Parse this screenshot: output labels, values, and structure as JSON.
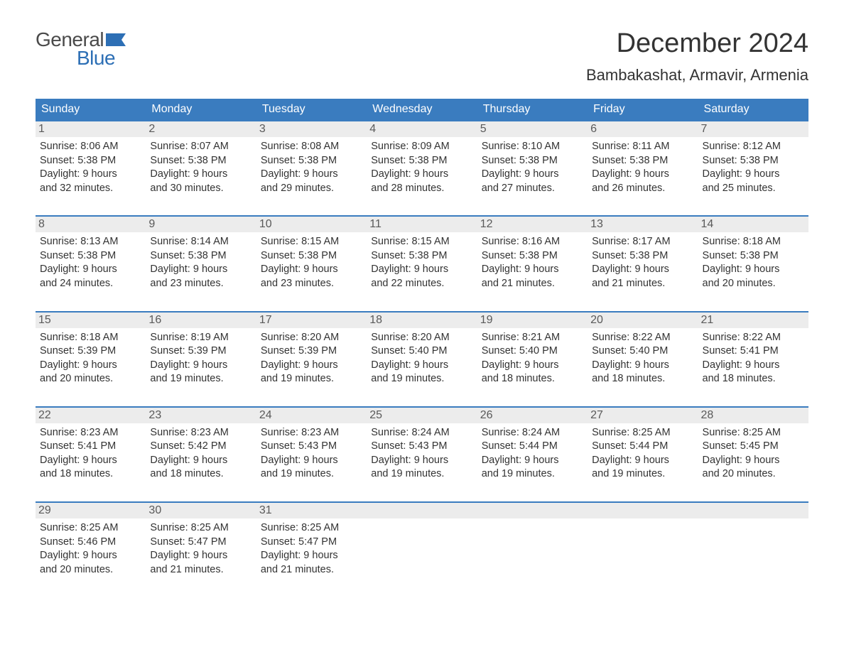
{
  "brand": {
    "word1": "General",
    "word2": "Blue",
    "flag_color": "#2d6fb5"
  },
  "title": "December 2024",
  "location": "Bambakashat, Armavir, Armenia",
  "colors": {
    "header_bg": "#3a7cbf",
    "header_text": "#ffffff",
    "band_bg": "#ececec",
    "text": "#333333",
    "rule": "#3a7cbf"
  },
  "typography": {
    "title_size": 38,
    "location_size": 22,
    "dayheader_size": 16,
    "body_size": 14.5
  },
  "day_labels": [
    "Sunday",
    "Monday",
    "Tuesday",
    "Wednesday",
    "Thursday",
    "Friday",
    "Saturday"
  ],
  "weeks": [
    [
      {
        "n": "1",
        "sunrise": "8:06 AM",
        "sunset": "5:38 PM",
        "dl1": "Daylight: 9 hours",
        "dl2": "and 32 minutes."
      },
      {
        "n": "2",
        "sunrise": "8:07 AM",
        "sunset": "5:38 PM",
        "dl1": "Daylight: 9 hours",
        "dl2": "and 30 minutes."
      },
      {
        "n": "3",
        "sunrise": "8:08 AM",
        "sunset": "5:38 PM",
        "dl1": "Daylight: 9 hours",
        "dl2": "and 29 minutes."
      },
      {
        "n": "4",
        "sunrise": "8:09 AM",
        "sunset": "5:38 PM",
        "dl1": "Daylight: 9 hours",
        "dl2": "and 28 minutes."
      },
      {
        "n": "5",
        "sunrise": "8:10 AM",
        "sunset": "5:38 PM",
        "dl1": "Daylight: 9 hours",
        "dl2": "and 27 minutes."
      },
      {
        "n": "6",
        "sunrise": "8:11 AM",
        "sunset": "5:38 PM",
        "dl1": "Daylight: 9 hours",
        "dl2": "and 26 minutes."
      },
      {
        "n": "7",
        "sunrise": "8:12 AM",
        "sunset": "5:38 PM",
        "dl1": "Daylight: 9 hours",
        "dl2": "and 25 minutes."
      }
    ],
    [
      {
        "n": "8",
        "sunrise": "8:13 AM",
        "sunset": "5:38 PM",
        "dl1": "Daylight: 9 hours",
        "dl2": "and 24 minutes."
      },
      {
        "n": "9",
        "sunrise": "8:14 AM",
        "sunset": "5:38 PM",
        "dl1": "Daylight: 9 hours",
        "dl2": "and 23 minutes."
      },
      {
        "n": "10",
        "sunrise": "8:15 AM",
        "sunset": "5:38 PM",
        "dl1": "Daylight: 9 hours",
        "dl2": "and 23 minutes."
      },
      {
        "n": "11",
        "sunrise": "8:15 AM",
        "sunset": "5:38 PM",
        "dl1": "Daylight: 9 hours",
        "dl2": "and 22 minutes."
      },
      {
        "n": "12",
        "sunrise": "8:16 AM",
        "sunset": "5:38 PM",
        "dl1": "Daylight: 9 hours",
        "dl2": "and 21 minutes."
      },
      {
        "n": "13",
        "sunrise": "8:17 AM",
        "sunset": "5:38 PM",
        "dl1": "Daylight: 9 hours",
        "dl2": "and 21 minutes."
      },
      {
        "n": "14",
        "sunrise": "8:18 AM",
        "sunset": "5:38 PM",
        "dl1": "Daylight: 9 hours",
        "dl2": "and 20 minutes."
      }
    ],
    [
      {
        "n": "15",
        "sunrise": "8:18 AM",
        "sunset": "5:39 PM",
        "dl1": "Daylight: 9 hours",
        "dl2": "and 20 minutes."
      },
      {
        "n": "16",
        "sunrise": "8:19 AM",
        "sunset": "5:39 PM",
        "dl1": "Daylight: 9 hours",
        "dl2": "and 19 minutes."
      },
      {
        "n": "17",
        "sunrise": "8:20 AM",
        "sunset": "5:39 PM",
        "dl1": "Daylight: 9 hours",
        "dl2": "and 19 minutes."
      },
      {
        "n": "18",
        "sunrise": "8:20 AM",
        "sunset": "5:40 PM",
        "dl1": "Daylight: 9 hours",
        "dl2": "and 19 minutes."
      },
      {
        "n": "19",
        "sunrise": "8:21 AM",
        "sunset": "5:40 PM",
        "dl1": "Daylight: 9 hours",
        "dl2": "and 18 minutes."
      },
      {
        "n": "20",
        "sunrise": "8:22 AM",
        "sunset": "5:40 PM",
        "dl1": "Daylight: 9 hours",
        "dl2": "and 18 minutes."
      },
      {
        "n": "21",
        "sunrise": "8:22 AM",
        "sunset": "5:41 PM",
        "dl1": "Daylight: 9 hours",
        "dl2": "and 18 minutes."
      }
    ],
    [
      {
        "n": "22",
        "sunrise": "8:23 AM",
        "sunset": "5:41 PM",
        "dl1": "Daylight: 9 hours",
        "dl2": "and 18 minutes."
      },
      {
        "n": "23",
        "sunrise": "8:23 AM",
        "sunset": "5:42 PM",
        "dl1": "Daylight: 9 hours",
        "dl2": "and 18 minutes."
      },
      {
        "n": "24",
        "sunrise": "8:23 AM",
        "sunset": "5:43 PM",
        "dl1": "Daylight: 9 hours",
        "dl2": "and 19 minutes."
      },
      {
        "n": "25",
        "sunrise": "8:24 AM",
        "sunset": "5:43 PM",
        "dl1": "Daylight: 9 hours",
        "dl2": "and 19 minutes."
      },
      {
        "n": "26",
        "sunrise": "8:24 AM",
        "sunset": "5:44 PM",
        "dl1": "Daylight: 9 hours",
        "dl2": "and 19 minutes."
      },
      {
        "n": "27",
        "sunrise": "8:25 AM",
        "sunset": "5:44 PM",
        "dl1": "Daylight: 9 hours",
        "dl2": "and 19 minutes."
      },
      {
        "n": "28",
        "sunrise": "8:25 AM",
        "sunset": "5:45 PM",
        "dl1": "Daylight: 9 hours",
        "dl2": "and 20 minutes."
      }
    ],
    [
      {
        "n": "29",
        "sunrise": "8:25 AM",
        "sunset": "5:46 PM",
        "dl1": "Daylight: 9 hours",
        "dl2": "and 20 minutes."
      },
      {
        "n": "30",
        "sunrise": "8:25 AM",
        "sunset": "5:47 PM",
        "dl1": "Daylight: 9 hours",
        "dl2": "and 21 minutes."
      },
      {
        "n": "31",
        "sunrise": "8:25 AM",
        "sunset": "5:47 PM",
        "dl1": "Daylight: 9 hours",
        "dl2": "and 21 minutes."
      },
      {
        "empty": true
      },
      {
        "empty": true
      },
      {
        "empty": true
      },
      {
        "empty": true
      }
    ]
  ],
  "labels": {
    "sunrise_prefix": "Sunrise: ",
    "sunset_prefix": "Sunset: "
  }
}
